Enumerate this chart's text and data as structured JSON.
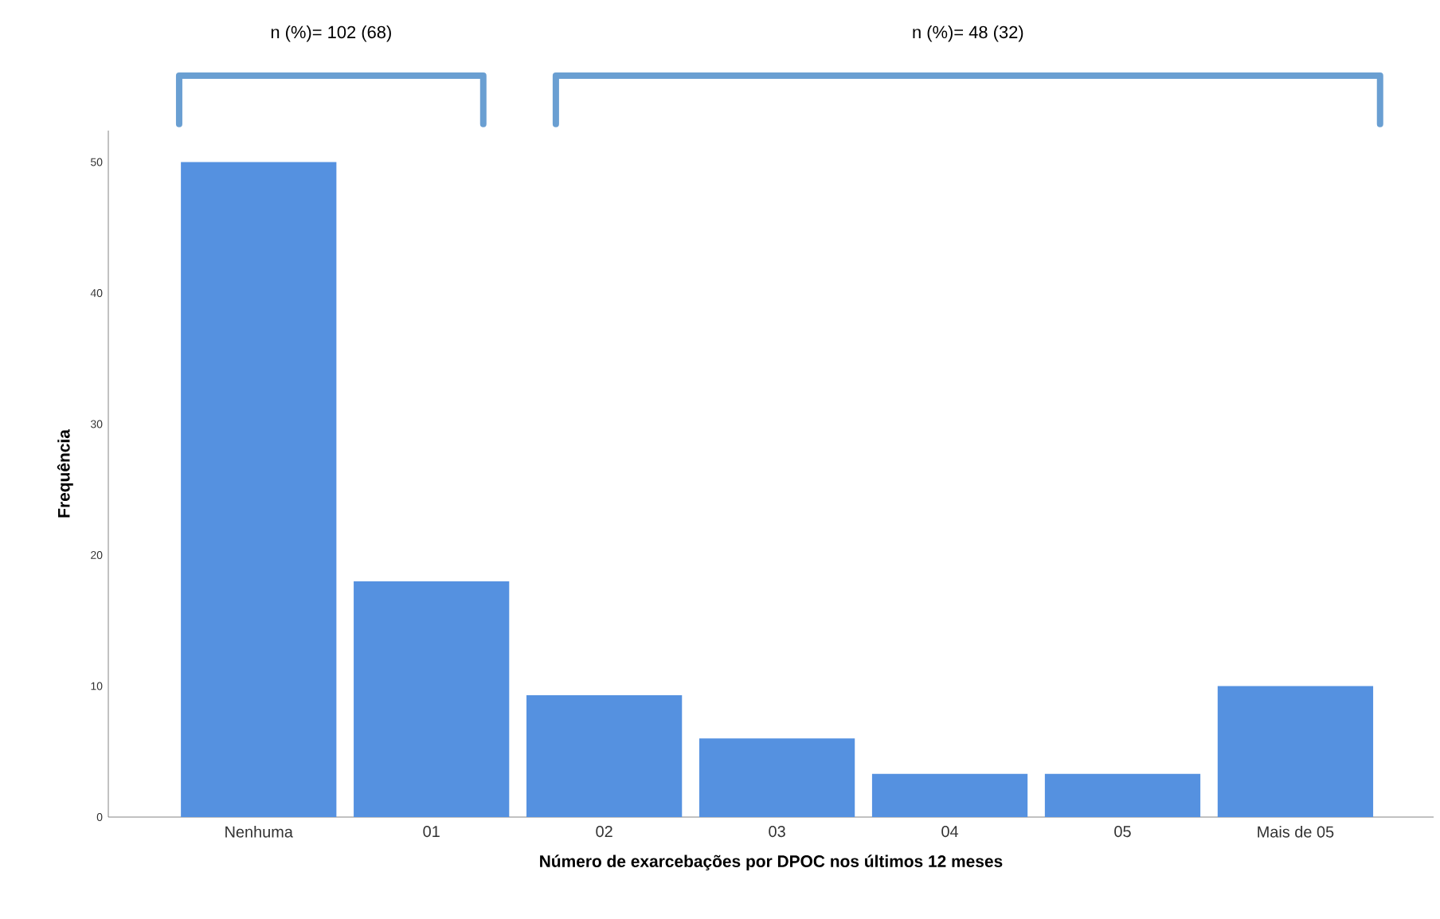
{
  "chart_data": {
    "type": "bar",
    "xlabel": "Número de exarcebações por DPOC nos últimos 12 meses",
    "ylabel": "Frequência",
    "categories": [
      "Nenhuma",
      "01",
      "02",
      "03",
      "04",
      "05",
      "Mais de 05"
    ],
    "values": [
      50,
      18,
      9.3,
      6,
      3.3,
      3.3,
      10
    ],
    "color": "#5591e0",
    "ylim": [
      0,
      52.4
    ],
    "yticks": [
      0,
      10,
      20,
      30,
      40,
      50
    ],
    "annotations": [
      "n (%)= 102 (68)",
      "n (%)= 48 (32)"
    ]
  }
}
